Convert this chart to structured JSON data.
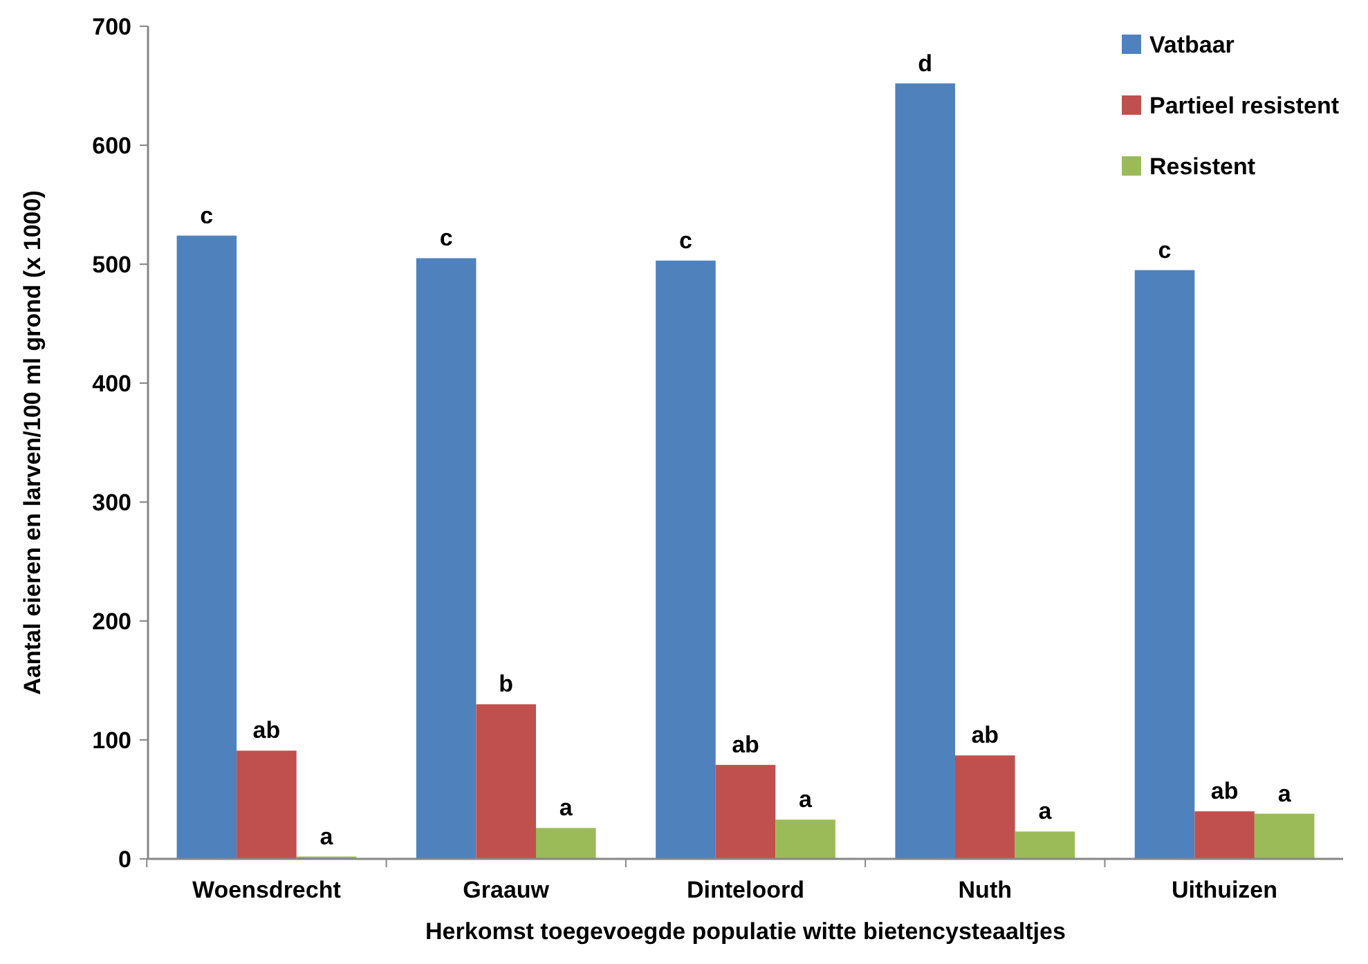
{
  "chart_data": {
    "type": "bar",
    "xlabel": "Herkomst toegevoegde populatie witte bietencysteaaltjes",
    "ylabel": "Aantal eieren en larven/100 ml grond (x 1000)",
    "categories": [
      "Woensdrecht",
      "Graauw",
      "Dinteloord",
      "Nuth",
      "Uithuizen"
    ],
    "series": [
      {
        "name": "Vatbaar",
        "color": "#4f81bd",
        "values": [
          524,
          505,
          503,
          652,
          495
        ],
        "value_labels": [
          "c",
          "c",
          "c",
          "d",
          "c"
        ]
      },
      {
        "name": "Partieel resistent",
        "color": "#c0504d",
        "values": [
          91,
          130,
          79,
          87,
          40
        ],
        "value_labels": [
          "ab",
          "b",
          "ab",
          "ab",
          "ab"
        ]
      },
      {
        "name": "Resistent",
        "color": "#9bbb59",
        "values": [
          2,
          26,
          33,
          23,
          38
        ],
        "value_labels": [
          "a",
          "a",
          "a",
          "a",
          "a"
        ]
      }
    ],
    "ylim": [
      0,
      700
    ],
    "yticks": [
      0,
      100,
      200,
      300,
      400,
      500,
      600,
      700
    ],
    "grid": false,
    "legend": "top right"
  }
}
